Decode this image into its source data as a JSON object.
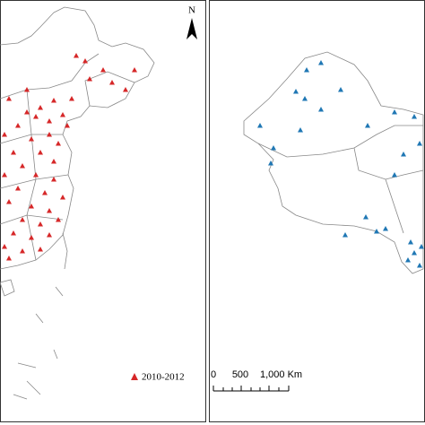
{
  "left_panel": {
    "north_label": "N",
    "legend": {
      "label": "2010-2012"
    }
  },
  "right_panel": {
    "scale_bar": {
      "labels": [
        "0",
        "500",
        "1,000 Km"
      ]
    }
  }
}
